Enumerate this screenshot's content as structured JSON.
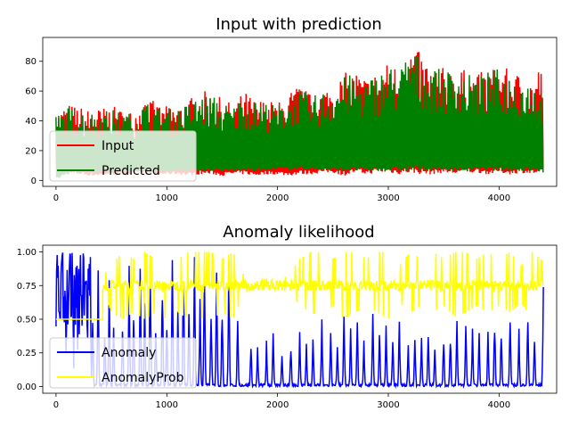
{
  "chart_data": [
    {
      "type": "line",
      "title": "Input with prediction",
      "xlabel": "",
      "ylabel": "",
      "xlim": [
        -120,
        4520
      ],
      "ylim": [
        -4,
        96
      ],
      "xticks": [
        0,
        1000,
        2000,
        3000,
        4000
      ],
      "yticks": [
        0,
        20,
        40,
        60,
        80
      ],
      "xtick_labels": [
        "0",
        "1000",
        "2000",
        "3000",
        "4000"
      ],
      "ytick_labels": [
        "0",
        "20",
        "40",
        "60",
        "80"
      ],
      "legend": {
        "placement": "lower-left",
        "entries": [
          "Input",
          "Predicted"
        ]
      },
      "grid": false,
      "series": [
        {
          "name": "Input",
          "color": "#ff0000",
          "approx_points": true,
          "x": [
            0,
            100,
            200,
            300,
            400,
            500,
            600,
            700,
            800,
            900,
            1000,
            1100,
            1200,
            1300,
            1400,
            1500,
            1600,
            1700,
            1800,
            1900,
            2000,
            2100,
            2200,
            2300,
            2400,
            2500,
            2600,
            2700,
            2800,
            2900,
            3000,
            3100,
            3200,
            3300,
            3400,
            3500,
            3600,
            3700,
            3800,
            3900,
            4000,
            4100,
            4200,
            4300,
            4400
          ],
          "y_max": [
            46,
            52,
            50,
            48,
            49,
            50,
            48,
            47,
            58,
            52,
            50,
            51,
            55,
            60,
            60,
            55,
            52,
            60,
            55,
            55,
            52,
            60,
            65,
            58,
            62,
            66,
            72,
            75,
            70,
            74,
            80,
            78,
            91,
            85,
            78,
            76,
            78,
            74,
            72,
            75,
            78,
            74,
            72,
            70,
            83
          ],
          "y_min": [
            3,
            4,
            4,
            3,
            3,
            4,
            3,
            4,
            4,
            3,
            4,
            4,
            3,
            4,
            4,
            3,
            4,
            4,
            3,
            4,
            4,
            3,
            4,
            4,
            5,
            5,
            3,
            5,
            4,
            5,
            5,
            4,
            5,
            4,
            4,
            5,
            4,
            5,
            5,
            4,
            5,
            4,
            5,
            4,
            5
          ]
        },
        {
          "name": "Predicted",
          "color": "#008000",
          "approx_points": true,
          "x": [
            0,
            100,
            200,
            300,
            400,
            500,
            600,
            700,
            800,
            900,
            1000,
            1100,
            1200,
            1300,
            1400,
            1500,
            1600,
            1700,
            1800,
            1900,
            2000,
            2100,
            2200,
            2300,
            2400,
            2500,
            2600,
            2700,
            2800,
            2900,
            3000,
            3100,
            3200,
            3300,
            3400,
            3500,
            3600,
            3700,
            3800,
            3900,
            4000,
            4100,
            4200,
            4300,
            4400
          ],
          "y_max": [
            44,
            50,
            48,
            46,
            47,
            48,
            46,
            45,
            54,
            50,
            48,
            49,
            52,
            58,
            58,
            53,
            50,
            58,
            53,
            53,
            50,
            58,
            62,
            56,
            60,
            64,
            70,
            72,
            68,
            72,
            78,
            75,
            90,
            82,
            76,
            74,
            76,
            72,
            70,
            73,
            76,
            72,
            70,
            68,
            62
          ],
          "y_min": [
            0,
            4,
            5,
            5,
            5,
            5,
            5,
            5,
            5,
            5,
            5,
            6,
            6,
            6,
            6,
            6,
            6,
            6,
            6,
            6,
            7,
            7,
            7,
            7,
            6,
            6,
            6,
            6,
            6,
            6,
            6,
            6,
            6,
            6,
            6,
            6,
            6,
            6,
            6,
            6,
            6,
            6,
            6,
            6,
            5
          ]
        }
      ]
    },
    {
      "type": "line",
      "title": "Anomaly likelihood",
      "xlabel": "",
      "ylabel": "",
      "xlim": [
        -120,
        4520
      ],
      "ylim": [
        -0.05,
        1.05
      ],
      "xticks": [
        0,
        1000,
        2000,
        3000,
        4000
      ],
      "yticks": [
        0.0,
        0.25,
        0.5,
        0.75,
        1.0
      ],
      "xtick_labels": [
        "0",
        "1000",
        "2000",
        "3000",
        "4000"
      ],
      "ytick_labels": [
        "0.00",
        "0.25",
        "0.50",
        "0.75",
        "1.00"
      ],
      "legend": {
        "placement": "lower-left",
        "entries": [
          "Anomaly",
          "AnomalyProb"
        ]
      },
      "grid": false,
      "series": [
        {
          "name": "Anomaly",
          "color": "#0000ff",
          "approx_points": true,
          "spike_x": [
            20,
            60,
            100,
            130,
            170,
            220,
            250,
            300,
            330,
            380,
            440,
            480,
            520,
            600,
            660,
            700,
            760,
            800,
            850,
            900,
            960,
            1000,
            1050,
            1100,
            1150,
            1200,
            1250,
            1300,
            1340,
            1400,
            1450,
            1500,
            1560,
            1640,
            1760,
            1820,
            1900,
            1960,
            2040,
            2120,
            2200,
            2260,
            2320,
            2400,
            2480,
            2540,
            2600,
            2660,
            2720,
            2780,
            2860,
            2920,
            2980,
            3040,
            3100,
            3180,
            3240,
            3300,
            3360,
            3420,
            3500,
            3560,
            3620,
            3700,
            3760,
            3820,
            3900,
            3960,
            4020,
            4100,
            4180,
            4260,
            4320,
            4400
          ],
          "spike_y": [
            1.0,
            1.0,
            0.95,
            0.8,
            1.0,
            0.6,
            1.0,
            0.7,
            0.5,
            0.9,
            0.45,
            0.8,
            0.5,
            0.55,
            0.95,
            0.6,
            0.9,
            0.65,
            1.0,
            0.55,
            0.9,
            0.5,
            1.0,
            0.6,
            0.95,
            0.55,
            1.0,
            0.7,
            1.0,
            0.6,
            1.0,
            0.65,
            1.0,
            0.5,
            0.35,
            0.3,
            0.35,
            0.4,
            0.3,
            0.35,
            0.45,
            0.35,
            0.4,
            0.55,
            0.45,
            0.4,
            0.6,
            0.45,
            0.5,
            0.35,
            0.55,
            0.45,
            0.5,
            0.4,
            0.55,
            0.35,
            0.45,
            0.4,
            0.45,
            0.35,
            0.4,
            0.45,
            0.55,
            0.5,
            0.45,
            0.4,
            0.45,
            0.55,
            0.5,
            0.55,
            0.45,
            0.55,
            0.4,
            0.75
          ],
          "baseline": 0.0
        },
        {
          "name": "AnomalyProb",
          "color": "#ffff00",
          "approx_points": true,
          "flat_segment": {
            "x": [
              0,
              420
            ],
            "y": 0.5
          },
          "x": [
            420,
            500,
            600,
            700,
            800,
            900,
            1000,
            1100,
            1200,
            1300,
            1400,
            1500,
            1600,
            1700,
            1800,
            1900,
            2000,
            2100,
            2200,
            2300,
            2400,
            2500,
            2600,
            2700,
            2800,
            2900,
            3000,
            3100,
            3200,
            3300,
            3400,
            3500,
            3600,
            3700,
            3800,
            3900,
            4000,
            4100,
            4200,
            4300,
            4400
          ],
          "y_max": [
            0.82,
            0.9,
            1.0,
            0.95,
            1.0,
            0.95,
            1.0,
            0.95,
            1.0,
            1.0,
            1.0,
            0.95,
            1.0,
            0.82,
            0.8,
            0.8,
            0.8,
            0.82,
            0.95,
            1.0,
            1.0,
            0.95,
            1.0,
            1.0,
            0.95,
            1.0,
            1.0,
            0.9,
            1.0,
            0.95,
            1.0,
            0.95,
            1.0,
            1.0,
            0.95,
            1.0,
            0.95,
            1.0,
            0.9,
            1.0,
            0.93
          ],
          "y_min": [
            0.72,
            0.55,
            0.5,
            0.55,
            0.5,
            0.55,
            0.5,
            0.55,
            0.5,
            0.5,
            0.5,
            0.55,
            0.5,
            0.7,
            0.72,
            0.72,
            0.72,
            0.7,
            0.6,
            0.55,
            0.52,
            0.6,
            0.5,
            0.55,
            0.6,
            0.55,
            0.5,
            0.62,
            0.55,
            0.6,
            0.55,
            0.6,
            0.52,
            0.55,
            0.6,
            0.55,
            0.6,
            0.55,
            0.62,
            0.5,
            0.65
          ],
          "y_center": 0.75
        }
      ]
    }
  ]
}
